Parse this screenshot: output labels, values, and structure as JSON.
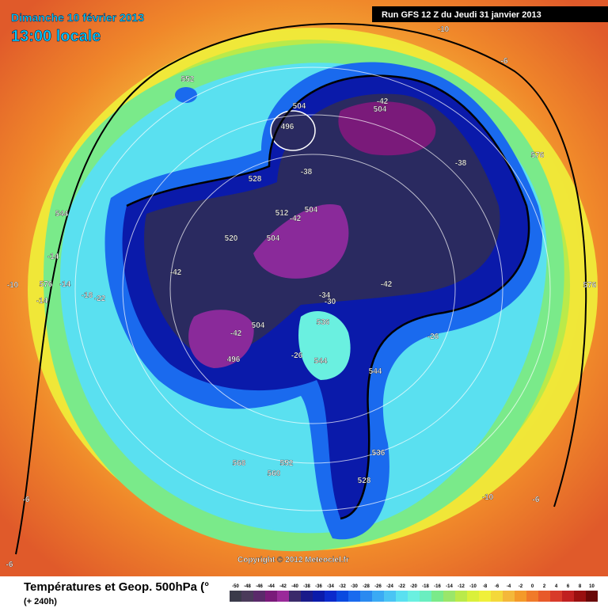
{
  "header": {
    "date": "Dimanche 10 février 2013",
    "time": "13:00 locale",
    "run": "Run GFS 12 Z du Jeudi 31 janvier 2013"
  },
  "map": {
    "labels": [
      -10,
      -6,
      552,
      504,
      496,
      -42,
      504,
      -38,
      576,
      -38,
      528,
      544,
      512,
      -42,
      504,
      504,
      520,
      -14,
      -42,
      -10,
      576,
      -14,
      -18,
      -22,
      -14,
      -42,
      -34,
      -30,
      576,
      -26,
      536,
      504,
      -42,
      -26,
      496,
      544,
      544,
      536,
      568,
      552,
      560,
      528,
      -10,
      -6,
      -6,
      -6
    ]
  },
  "copyright": "Copyright © 2012 Meteociel.fr",
  "footer": {
    "title": "Températures et Geop. 500hPa (°",
    "subtitle": "(+ 240h)"
  },
  "legend": {
    "ticks": [
      -50,
      -48,
      -46,
      -44,
      -42,
      -40,
      -38,
      -36,
      -34,
      -32,
      -30,
      -28,
      -26,
      -24,
      -22,
      -20,
      -18,
      -16,
      -14,
      -12,
      -10,
      -8,
      -6,
      -4,
      -2,
      0,
      2,
      4,
      6,
      8,
      10
    ],
    "colors": [
      "#3a3a4a",
      "#4a3a5a",
      "#5a2a6a",
      "#7a1a7a",
      "#9a2a9a",
      "#3a2a6a",
      "#1a1a8a",
      "#0a1aaa",
      "#0a2acc",
      "#0a4ae0",
      "#1a6aee",
      "#2a8af0",
      "#3aaaf4",
      "#4ac4f4",
      "#5ae0f0",
      "#6af0e0",
      "#6aeec0",
      "#7aea8a",
      "#9ae66a",
      "#baea4a",
      "#daf03a",
      "#f0f03a",
      "#f4d83a",
      "#f4b83a",
      "#f49a2a",
      "#f07a2a",
      "#e85a2a",
      "#d83a2a",
      "#c02020",
      "#9a1010",
      "#6a0808"
    ]
  }
}
